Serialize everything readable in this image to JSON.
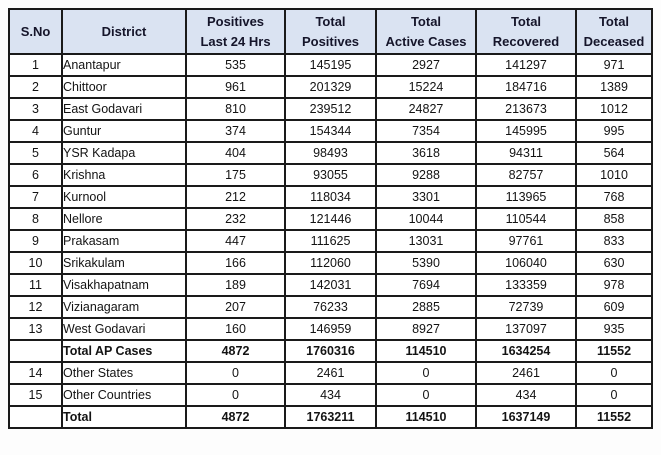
{
  "colors": {
    "header_bg": "#dae3f2",
    "grid_border": "#1a1a1a",
    "header_text": "#15152a",
    "body_text": "#131313",
    "page_bg": "#fdfdfd"
  },
  "table": {
    "columns": [
      {
        "key": "sno",
        "lines": [
          "S.No"
        ]
      },
      {
        "key": "district",
        "lines": [
          "District"
        ]
      },
      {
        "key": "positives_last_24_hrs",
        "lines": [
          "Positives",
          "Last 24 Hrs"
        ]
      },
      {
        "key": "total_positives",
        "lines": [
          "Total",
          "Positives"
        ]
      },
      {
        "key": "total_active_cases",
        "lines": [
          "Total",
          "Active Cases"
        ]
      },
      {
        "key": "total_recovered",
        "lines": [
          "Total",
          "Recovered"
        ]
      },
      {
        "key": "total_deceased",
        "lines": [
          "Total",
          "Deceased"
        ]
      }
    ],
    "rows": [
      {
        "sno": "1",
        "district": "Anantapur",
        "values": [
          "535",
          "145195",
          "2927",
          "141297",
          "971"
        ],
        "bold": false
      },
      {
        "sno": "2",
        "district": "Chittoor",
        "values": [
          "961",
          "201329",
          "15224",
          "184716",
          "1389"
        ],
        "bold": false
      },
      {
        "sno": "3",
        "district": "East Godavari",
        "values": [
          "810",
          "239512",
          "24827",
          "213673",
          "1012"
        ],
        "bold": false
      },
      {
        "sno": "4",
        "district": "Guntur",
        "values": [
          "374",
          "154344",
          "7354",
          "145995",
          "995"
        ],
        "bold": false
      },
      {
        "sno": "5",
        "district": "YSR Kadapa",
        "values": [
          "404",
          "98493",
          "3618",
          "94311",
          "564"
        ],
        "bold": false
      },
      {
        "sno": "6",
        "district": "Krishna",
        "values": [
          "175",
          "93055",
          "9288",
          "82757",
          "1010"
        ],
        "bold": false
      },
      {
        "sno": "7",
        "district": "Kurnool",
        "values": [
          "212",
          "118034",
          "3301",
          "113965",
          "768"
        ],
        "bold": false
      },
      {
        "sno": "8",
        "district": "Nellore",
        "values": [
          "232",
          "121446",
          "10044",
          "110544",
          "858"
        ],
        "bold": false
      },
      {
        "sno": "9",
        "district": "Prakasam",
        "values": [
          "447",
          "111625",
          "13031",
          "97761",
          "833"
        ],
        "bold": false
      },
      {
        "sno": "10",
        "district": "Srikakulam",
        "values": [
          "166",
          "112060",
          "5390",
          "106040",
          "630"
        ],
        "bold": false
      },
      {
        "sno": "11",
        "district": "Visakhapatnam",
        "values": [
          "189",
          "142031",
          "7694",
          "133359",
          "978"
        ],
        "bold": false
      },
      {
        "sno": "12",
        "district": "Vizianagaram",
        "values": [
          "207",
          "76233",
          "2885",
          "72739",
          "609"
        ],
        "bold": false
      },
      {
        "sno": "13",
        "district": "West Godavari",
        "values": [
          "160",
          "146959",
          "8927",
          "137097",
          "935"
        ],
        "bold": false
      },
      {
        "sno": "",
        "district": "Total AP Cases",
        "values": [
          "4872",
          "1760316",
          "114510",
          "1634254",
          "11552"
        ],
        "bold": true
      },
      {
        "sno": "14",
        "district": "Other States",
        "values": [
          "0",
          "2461",
          "0",
          "2461",
          "0"
        ],
        "bold": false
      },
      {
        "sno": "15",
        "district": "Other Countries",
        "values": [
          "0",
          "434",
          "0",
          "434",
          "0"
        ],
        "bold": false
      },
      {
        "sno": "",
        "district": "Total",
        "values": [
          "4872",
          "1763211",
          "114510",
          "1637149",
          "11552"
        ],
        "bold": true
      }
    ]
  }
}
